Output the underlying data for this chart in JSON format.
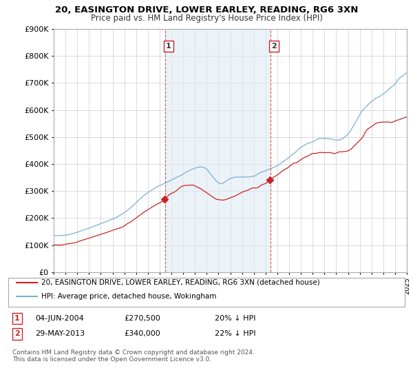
{
  "title": "20, EASINGTON DRIVE, LOWER EARLEY, READING, RG6 3XN",
  "subtitle": "Price paid vs. HM Land Registry's House Price Index (HPI)",
  "ylim": [
    0,
    900000
  ],
  "yticks": [
    0,
    100000,
    200000,
    300000,
    400000,
    500000,
    600000,
    700000,
    800000,
    900000
  ],
  "ytick_labels": [
    "£0",
    "£100K",
    "£200K",
    "£300K",
    "£400K",
    "£500K",
    "£600K",
    "£700K",
    "£800K",
    "£900K"
  ],
  "hpi_color": "#7ab0d4",
  "hpi_fill_color": "#deeaf4",
  "price_color": "#cc2222",
  "vline_color": "#dd4444",
  "sale1_date": 2004.46,
  "sale1_price": 270500,
  "sale2_date": 2013.41,
  "sale2_price": 340000,
  "legend_label_price": "20, EASINGTON DRIVE, LOWER EARLEY, READING, RG6 3XN (detached house)",
  "legend_label_hpi": "HPI: Average price, detached house, Wokingham",
  "background_color": "#ffffff",
  "grid_color": "#cccccc",
  "footnote": "Contains HM Land Registry data © Crown copyright and database right 2024.\nThis data is licensed under the Open Government Licence v3.0."
}
